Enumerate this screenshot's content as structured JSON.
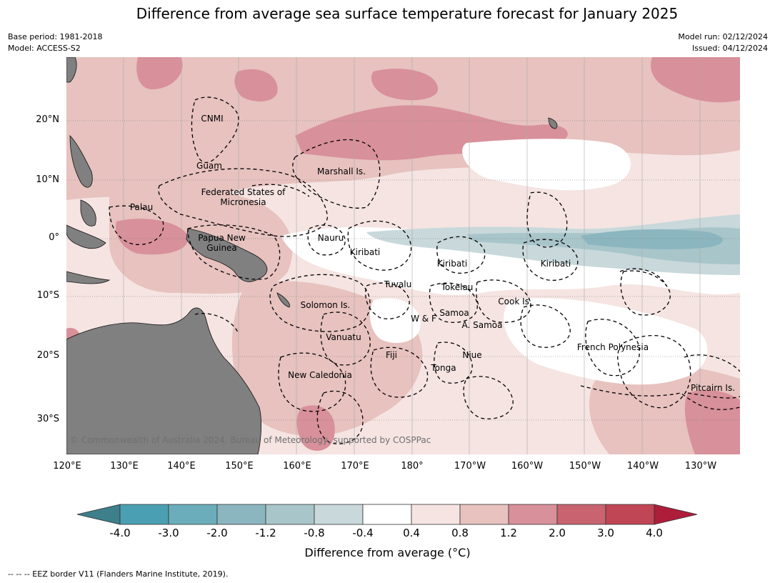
{
  "title": "Difference from average sea surface temperature forecast for January 2025",
  "meta": {
    "base_period": "Base period: 1981-2018",
    "model": "Model: ACCESS-S2",
    "model_run": "Model run: 02/12/2024",
    "issued": "Issued: 04/12/2024"
  },
  "axes": {
    "lat_labels": [
      "20°N",
      "10°N",
      "0°",
      "10°S",
      "20°S",
      "30°S"
    ],
    "lon_labels": [
      "120°E",
      "130°E",
      "140°E",
      "150°E",
      "160°E",
      "170°E",
      "180°",
      "170°W",
      "160°W",
      "150°W",
      "140°W",
      "130°W"
    ]
  },
  "regions": {
    "cnmi": "CNMI",
    "guam": "Guam",
    "marshall": "Marshall Is.",
    "fsm": "Federated States of Micronesia",
    "palau": "Palau",
    "png": "Papua New Guinea",
    "nauru": "Nauru",
    "kiribati_w": "Kiribati",
    "kiribati_c": "Kiribati",
    "kiribati_e": "Kiribati",
    "tuvalu": "Tuvalu",
    "tokelau": "Tokelau",
    "cook": "Cook Is.",
    "solomon": "Solomon Is.",
    "samoa": "Samoa",
    "wf": "W & F",
    "asamoa": "A. Samoa",
    "vanuatu": "Vanuatu",
    "fiji": "Fiji",
    "niue": "Niue",
    "tonga": "Tonga",
    "french_polynesia": "French Polynesia",
    "new_caledonia": "New Caledonia",
    "pitcairn": "Pitcairn Is."
  },
  "copyright": "© Commonwealth of Australia 2024, Bureau of Meteorology, supported by COSPPac",
  "colorbar": {
    "ticks": [
      "-4.0",
      "-3.0",
      "-2.0",
      "-1.2",
      "-0.8",
      "-0.4",
      "0.4",
      "0.8",
      "1.2",
      "2.0",
      "3.0",
      "4.0"
    ],
    "colors": [
      "#3d7f8a",
      "#4aa0b2",
      "#6badbb",
      "#8bb6c0",
      "#a8c5ca",
      "#c8d8db",
      "#ffffff",
      "#f5e4e2",
      "#e7c2bf",
      "#d8909a",
      "#c8636f",
      "#c04555",
      "#ae1d3a"
    ],
    "label": "Difference from average (°C)"
  },
  "legend_note": "--  --  -- EEZ border V11 (Flanders Marine Institute, 2019)."
}
